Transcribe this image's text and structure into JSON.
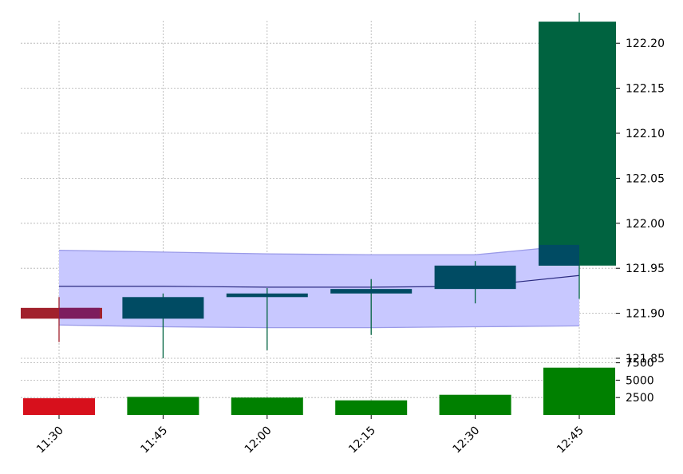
{
  "chart_data": {
    "type": "candlestick",
    "title": "",
    "xlabel": "",
    "ylabel": "",
    "grid": true,
    "x_labels": [
      "11:30",
      "11:45",
      "12:00",
      "12:15",
      "12:30",
      "12:45"
    ],
    "price_axis": {
      "ylim": [
        121.85,
        122.225
      ],
      "ticks": [
        121.85,
        121.9,
        121.95,
        122.0,
        122.05,
        122.1,
        122.15,
        122.2
      ],
      "side": "right"
    },
    "volume_axis": {
      "ylim": [
        0,
        7800
      ],
      "ticks": [
        2500,
        5000,
        7500
      ],
      "side": "right"
    },
    "candles": [
      {
        "time": "11:30",
        "open": 121.906,
        "high": 121.918,
        "low": 121.868,
        "close": 121.894,
        "direction": "down"
      },
      {
        "time": "11:45",
        "open": 121.894,
        "high": 121.922,
        "low": 121.85,
        "close": 121.918,
        "direction": "up"
      },
      {
        "time": "12:00",
        "open": 121.918,
        "high": 121.928,
        "low": 121.859,
        "close": 121.922,
        "direction": "up"
      },
      {
        "time": "12:15",
        "open": 121.922,
        "high": 121.938,
        "low": 121.876,
        "close": 121.927,
        "direction": "up"
      },
      {
        "time": "12:30",
        "open": 121.927,
        "high": 121.958,
        "low": 121.911,
        "close": 121.953,
        "direction": "up"
      },
      {
        "time": "12:45",
        "open": 121.953,
        "high": 122.234,
        "low": 121.916,
        "close": 122.224,
        "direction": "up"
      }
    ],
    "volumes": [
      2400,
      2600,
      2500,
      2100,
      2900,
      6800
    ],
    "bands": {
      "middle": [
        121.93,
        121.93,
        121.929,
        121.929,
        121.93,
        121.942
      ],
      "upper": [
        121.97,
        121.968,
        121.966,
        121.965,
        121.965,
        121.976
      ],
      "lower": [
        121.887,
        121.885,
        121.884,
        121.884,
        121.885,
        121.886
      ]
    },
    "colors": {
      "up_candle": "#006340",
      "up_candle_box": "#004b63",
      "down_candle": "#a1212c",
      "down_candle_box": "#7d1d5e",
      "band_fill": "#c8c8ff",
      "band_line": "#9a9ae8",
      "middle_line": "#2a2a80",
      "volume_up": "#008000",
      "volume_down": "#d7101c"
    }
  }
}
